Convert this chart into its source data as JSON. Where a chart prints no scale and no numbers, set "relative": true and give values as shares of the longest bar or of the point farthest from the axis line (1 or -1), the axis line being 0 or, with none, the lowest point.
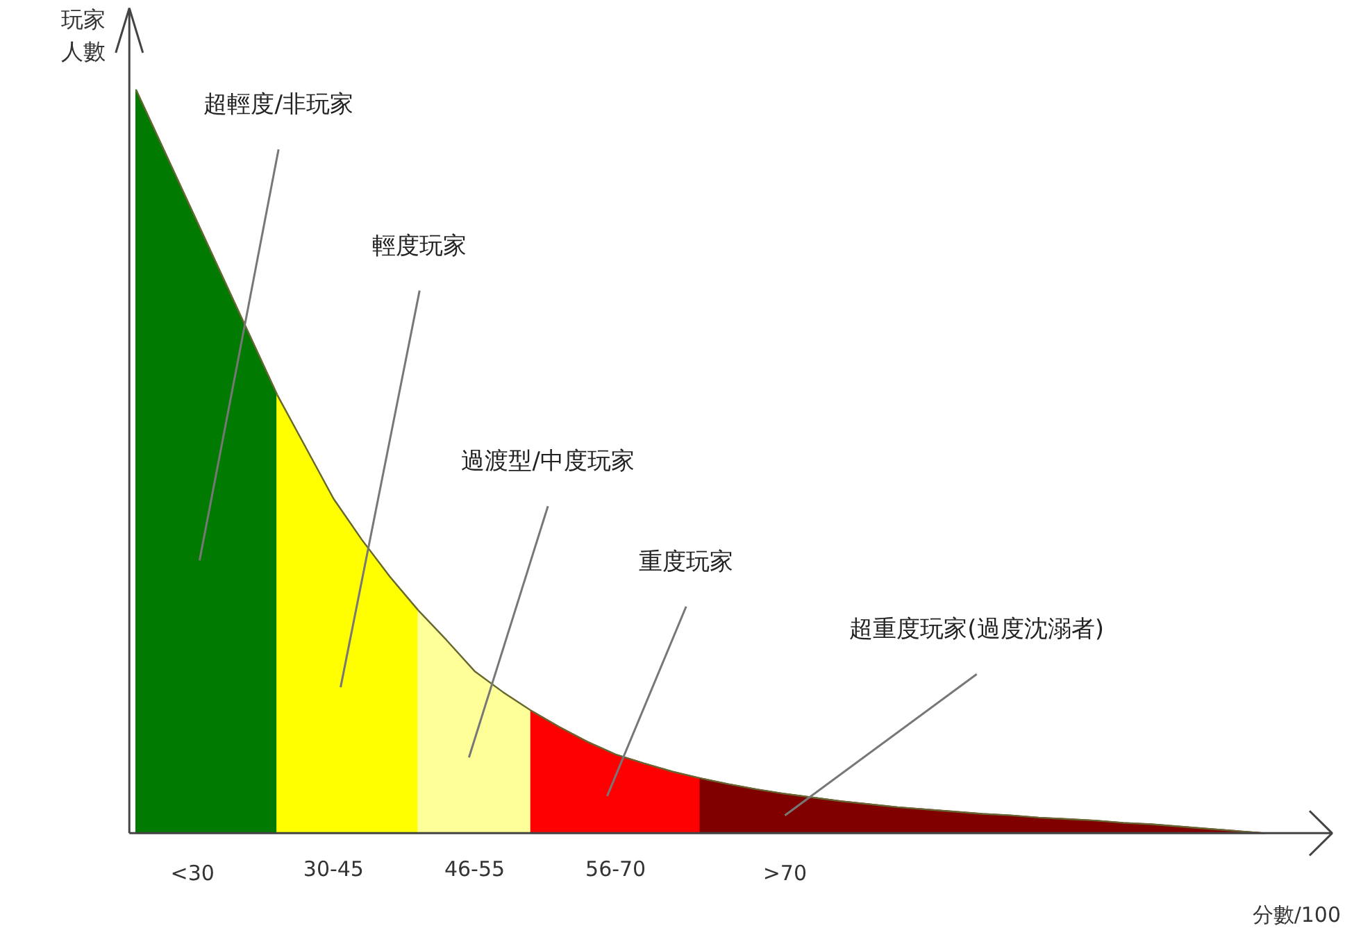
{
  "chart_data": {
    "type": "area",
    "relative": true,
    "xlabel": "分數/100",
    "ylabel": "玩家人數",
    "categories": [
      null,
      null,
      "<30",
      null,
      null,
      null,
      null,
      "30-45",
      null,
      null,
      null,
      null,
      "46-55",
      null,
      null,
      null,
      null,
      "56-70",
      null,
      null,
      null,
      null,
      null,
      ">70",
      null,
      null,
      null,
      null,
      null,
      null,
      null,
      null,
      null,
      null,
      null,
      null,
      null,
      null,
      null,
      null,
      null
    ],
    "grid": false,
    "legend": false,
    "series": [
      {
        "name": "超輕度/非玩家",
        "color": "#007a00",
        "values": [
          1.0,
          0.918,
          0.836,
          0.754,
          0.672,
          0.59,
          null,
          null,
          null,
          null,
          null,
          null,
          null,
          null,
          null,
          null,
          null,
          null,
          null,
          null,
          null,
          null,
          null,
          null,
          null,
          null,
          null,
          null,
          null,
          null,
          null,
          null,
          null,
          null,
          null,
          null,
          null,
          null,
          null,
          null,
          null
        ]
      },
      {
        "name": "輕度玩家",
        "color": "#ffff00",
        "values": [
          null,
          null,
          null,
          null,
          null,
          0.59,
          0.52,
          0.45,
          0.395,
          0.345,
          0.3,
          null,
          null,
          null,
          null,
          null,
          null,
          null,
          null,
          null,
          null,
          null,
          null,
          null,
          null,
          null,
          null,
          null,
          null,
          null,
          null,
          null,
          null,
          null,
          null,
          null,
          null,
          null,
          null,
          null,
          null
        ]
      },
      {
        "name": "過渡型/中度玩家",
        "color": "#ffff99",
        "values": [
          null,
          null,
          null,
          null,
          null,
          null,
          null,
          null,
          null,
          null,
          0.3,
          0.26,
          0.218,
          0.19,
          0.165,
          null,
          null,
          null,
          null,
          null,
          null,
          null,
          null,
          null,
          null,
          null,
          null,
          null,
          null,
          null,
          null,
          null,
          null,
          null,
          null,
          null,
          null,
          null,
          null,
          null,
          null
        ]
      },
      {
        "name": "重度玩家",
        "color": "#ff0000",
        "values": [
          null,
          null,
          null,
          null,
          null,
          null,
          null,
          null,
          null,
          null,
          null,
          null,
          null,
          null,
          0.165,
          0.143,
          0.123,
          0.106,
          0.094,
          0.083,
          0.074,
          null,
          null,
          null,
          null,
          null,
          null,
          null,
          null,
          null,
          null,
          null,
          null,
          null,
          null,
          null,
          null,
          null,
          null,
          null,
          null
        ]
      },
      {
        "name": "超重度玩家(過度沈溺者)",
        "color": "#800000",
        "values": [
          null,
          null,
          null,
          null,
          null,
          null,
          null,
          null,
          null,
          null,
          null,
          null,
          null,
          null,
          null,
          null,
          null,
          null,
          null,
          null,
          0.074,
          0.066,
          0.059,
          0.053,
          0.048,
          0.043,
          0.039,
          0.035,
          0.032,
          0.029,
          0.026,
          0.024,
          0.021,
          0.019,
          0.017,
          0.014,
          0.012,
          0.009,
          0.006,
          0.003,
          0
        ]
      }
    ]
  }
}
